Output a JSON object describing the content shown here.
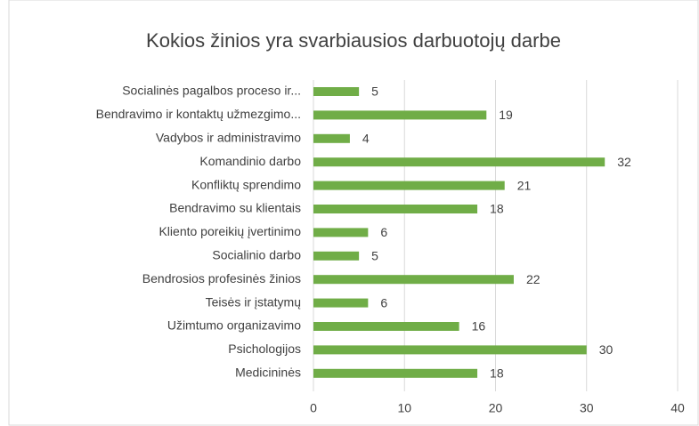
{
  "chart_data": {
    "type": "bar",
    "orientation": "horizontal",
    "title": "Kokios žinios yra svarbiausios darbuotojų darbe",
    "categories": [
      "Socialinės pagalbos proceso ir...",
      "Bendravimo ir kontaktų užmezgimo...",
      "Vadybos ir administravimo",
      "Komandinio darbo",
      "Konfliktų sprendimo",
      "Bendravimo su klientais",
      "Kliento poreikių įvertinimo",
      "Socialinio darbo",
      "Bendrosios profesinės žinios",
      "Teisės ir įstatymų",
      "Užimtumo organizavimo",
      "Psichologijos",
      "Medicininės"
    ],
    "values": [
      5,
      19,
      4,
      32,
      21,
      18,
      6,
      5,
      22,
      6,
      16,
      30,
      18
    ],
    "color": "#70ad47",
    "xlim": [
      0,
      40
    ],
    "xticks": [
      0,
      10,
      20,
      30,
      40
    ],
    "grid": true
  }
}
